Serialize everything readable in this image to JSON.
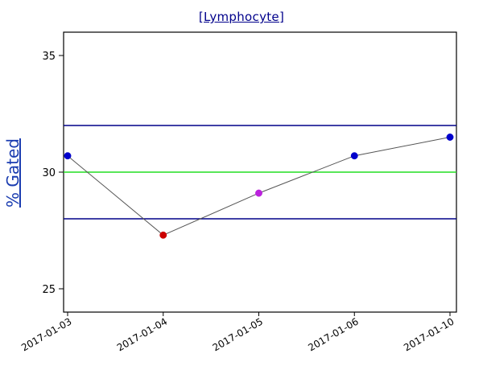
{
  "chart_data": {
    "type": "line",
    "title": "[Lymphocyte]",
    "ylabel": "% Gated",
    "xlabel": "",
    "categories": [
      "2017-01-03",
      "2017-01-04",
      "2017-01-05",
      "2017-01-06",
      "2017-01-10"
    ],
    "series": [
      {
        "values": [
          30.7,
          27.3,
          29.1,
          30.7,
          31.5
        ],
        "point_colors": [
          "#0000cc",
          "#cc0000",
          "#bb22dd",
          "#0000cc",
          "#0000cc"
        ],
        "line_color": "#555555"
      }
    ],
    "reference_lines": [
      {
        "value": 32,
        "color": "#000088"
      },
      {
        "value": 30,
        "color": "#22dd22"
      },
      {
        "value": 28,
        "color": "#000088"
      }
    ],
    "yticks": [
      25,
      30,
      35
    ],
    "ylim": [
      24,
      36
    ],
    "grid": false,
    "legend": "none"
  }
}
